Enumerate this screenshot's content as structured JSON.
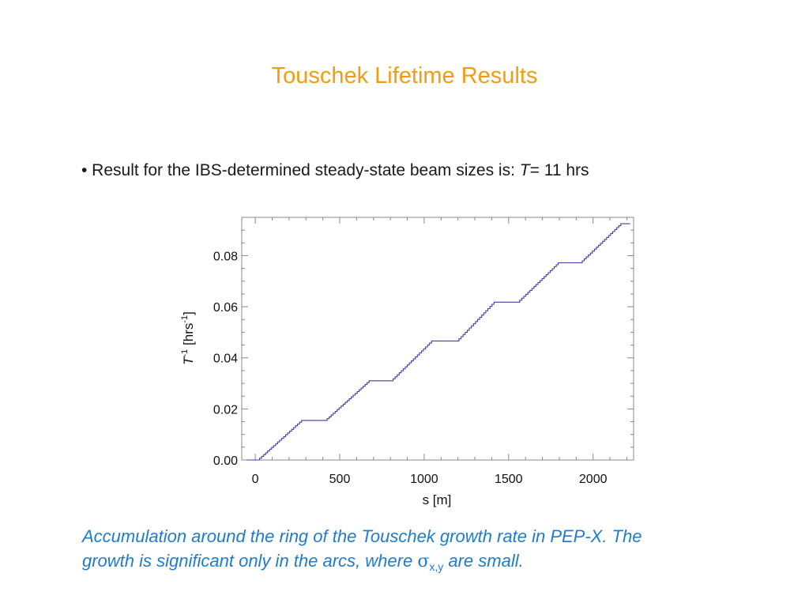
{
  "slide": {
    "title": "Touschek Lifetime Results",
    "bullet_prefix": "• Result for the IBS-determined steady-state beam sizes is: ",
    "bullet_var": "T",
    "bullet_suffix": "= 11 hrs",
    "caption_line1": "Accumulation around the ring of the Touschek growth rate in PEP-X. The",
    "caption_line2_a": "growth is significant only in the arcs, where ",
    "caption_sigma": "σ",
    "caption_sub": "x,y",
    "caption_line2_b": " are small."
  },
  "chart_data": {
    "type": "line",
    "xlabel": "s [m]",
    "ylabel_var": "T",
    "ylabel_sup": "-1",
    "ylabel_rest1": " [hrs",
    "ylabel_sup2": "-1",
    "ylabel_rest2": "]",
    "xlim": [
      -80,
      2240
    ],
    "ylim": [
      0.0,
      0.095
    ],
    "x_ticks": [
      0,
      500,
      1000,
      1500,
      2000
    ],
    "x_tick_labels": [
      "0",
      "500",
      "1000",
      "1500",
      "2000"
    ],
    "y_ticks": [
      0.0,
      0.02,
      0.04,
      0.06,
      0.08
    ],
    "y_tick_labels": [
      "0.00",
      "0.02",
      "0.04",
      "0.06",
      "0.08"
    ],
    "series": [
      {
        "color": "#3b3fa8",
        "x": [
          -50,
          20,
          280,
          420,
          680,
          810,
          1050,
          1200,
          1420,
          1560,
          1800,
          1930,
          2170,
          2220
        ],
        "y": [
          0.0,
          0.0,
          0.0155,
          0.0155,
          0.031,
          0.031,
          0.0466,
          0.0466,
          0.0618,
          0.0618,
          0.0772,
          0.0772,
          0.0925,
          0.0925
        ]
      }
    ]
  }
}
